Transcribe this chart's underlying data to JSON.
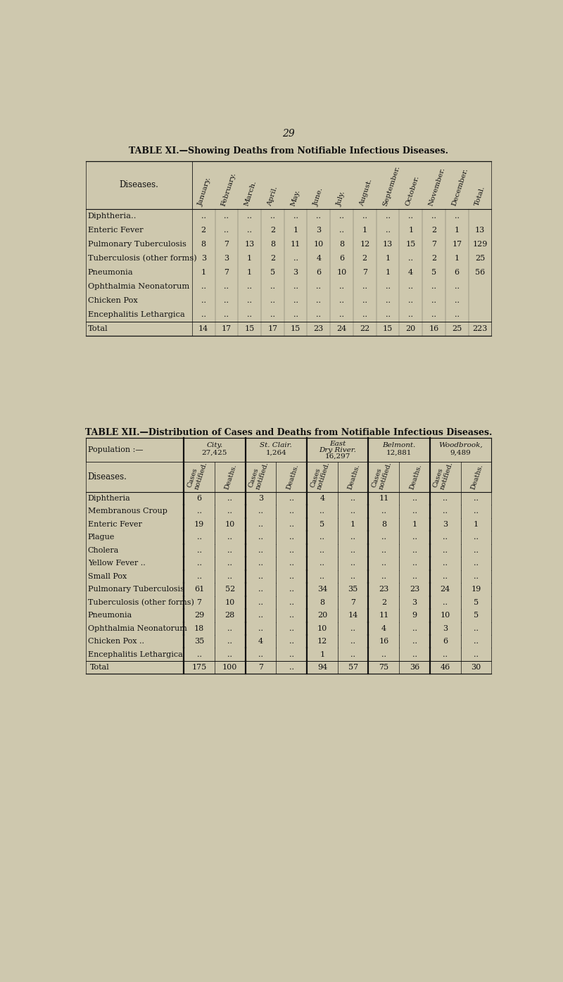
{
  "page_number": "29",
  "bg_color": "#cec8ae",
  "text_color": "#111111",
  "table1": {
    "title": "TABLE XI.—Showing Deaths from Notifiable Infectious Diseases.",
    "months": [
      "January.",
      "February.",
      "March.",
      "April.",
      "May.",
      "June.",
      "July.",
      "August.",
      "September.",
      "October.",
      "November.",
      "December.",
      "Total."
    ],
    "rows": [
      [
        "Diphtheria..",
        "..",
        "..",
        "..",
        "..",
        "..",
        "..",
        "..",
        "..",
        "..",
        "..",
        "..",
        ".."
      ],
      [
        "Enteric Fever",
        "2",
        "..",
        "..",
        "2",
        "1",
        "3",
        "..",
        "1",
        "..",
        "1",
        "2",
        "1",
        "13"
      ],
      [
        "Pulmonary Tuberculosis",
        "8",
        "7",
        "13",
        "8",
        "11",
        "10",
        "8",
        "12",
        "13",
        "15",
        "7",
        "17",
        "129"
      ],
      [
        "Tuberculosis (other forms)",
        "3",
        "3",
        "1",
        "2",
        "..",
        "4",
        "6",
        "2",
        "1",
        "..",
        "2",
        "1",
        "25"
      ],
      [
        "Pneumonia",
        "1",
        "7",
        "1",
        "5",
        "3",
        "6",
        "10",
        "7",
        "1",
        "4",
        "5",
        "6",
        "56"
      ],
      [
        "Ophthalmia Neonatorum",
        "..",
        "..",
        "..",
        "..",
        "..",
        "..",
        "..",
        "..",
        "..",
        "..",
        "..",
        ".."
      ],
      [
        "Chicken Pox",
        "..",
        "..",
        "..",
        "..",
        "..",
        "..",
        "..",
        "..",
        "..",
        "..",
        "..",
        ".."
      ],
      [
        "Encephalitis Lethargica",
        "..",
        "..",
        "..",
        "..",
        "..",
        "..",
        "..",
        "..",
        "..",
        "..",
        "..",
        ".."
      ],
      [
        "Total",
        "14",
        "17",
        "15",
        "17",
        "15",
        "23",
        "24",
        "22",
        "15",
        "20",
        "16",
        "25",
        "223"
      ]
    ]
  },
  "table2": {
    "title": "TABLE XII.—Distribution of Cases and Deaths from Notifiable Infectious Diseases.",
    "areas": [
      "City.",
      "St. Clair.",
      "East\nDry River.",
      "Belmont.",
      "Woodbrook,"
    ],
    "pops": [
      "27,425",
      "1,264",
      "16,297",
      "12,881",
      "9,489"
    ],
    "diseases": [
      "Diphtheria",
      "Membranous Croup",
      "Enteric Fever",
      "Plague",
      "Cholera",
      "Yellow Fever ..",
      "Small Pox",
      "Pulmonary Tuberculosis",
      "Tuberculosis (other forms)",
      "Pneumonia",
      "Ophthalmia Neonatorum",
      "Chicken Pox ..",
      "Encephalitis Lethargica",
      "Total"
    ],
    "data": [
      [
        "6",
        "..",
        "3",
        "..",
        "4",
        "..",
        "11",
        "..",
        "..",
        ".."
      ],
      [
        "..",
        "..",
        "..",
        "..",
        "..",
        "..",
        "..",
        "..",
        "..",
        ".."
      ],
      [
        "19",
        "10",
        "..",
        "..",
        "5",
        "1",
        "8",
        "1",
        "3",
        "1"
      ],
      [
        "..",
        "..",
        "..",
        "..",
        "..",
        "..",
        "..",
        "..",
        "..",
        ".."
      ],
      [
        "..",
        "..",
        "..",
        "..",
        "..",
        "..",
        "..",
        "..",
        "..",
        ".."
      ],
      [
        "..",
        "..",
        "..",
        "..",
        "..",
        "..",
        "..",
        "..",
        "..",
        ".."
      ],
      [
        "..",
        "..",
        "..",
        "..",
        "..",
        "..",
        "..",
        "..",
        "..",
        ".."
      ],
      [
        "61",
        "52",
        "..",
        "..",
        "34",
        "35",
        "23",
        "23",
        "24",
        "19"
      ],
      [
        "7",
        "10",
        "..",
        "..",
        "8",
        "7",
        "2",
        "3",
        "..",
        "5"
      ],
      [
        "29",
        "28",
        "..",
        "..",
        "20",
        "14",
        "11",
        "9",
        "10",
        "5"
      ],
      [
        "18",
        "..",
        "..",
        "..",
        "10",
        "..",
        "4",
        "..",
        "3",
        ".."
      ],
      [
        "35",
        "..",
        "4",
        "..",
        "12",
        "..",
        "16",
        "..",
        "6",
        ".."
      ],
      [
        "..",
        "..",
        "..",
        "..",
        "1",
        "..",
        "..",
        "..",
        "..",
        ".."
      ],
      [
        "175",
        "100",
        "7",
        "..",
        "94",
        "57",
        "75",
        "36",
        "46",
        "30"
      ]
    ]
  }
}
